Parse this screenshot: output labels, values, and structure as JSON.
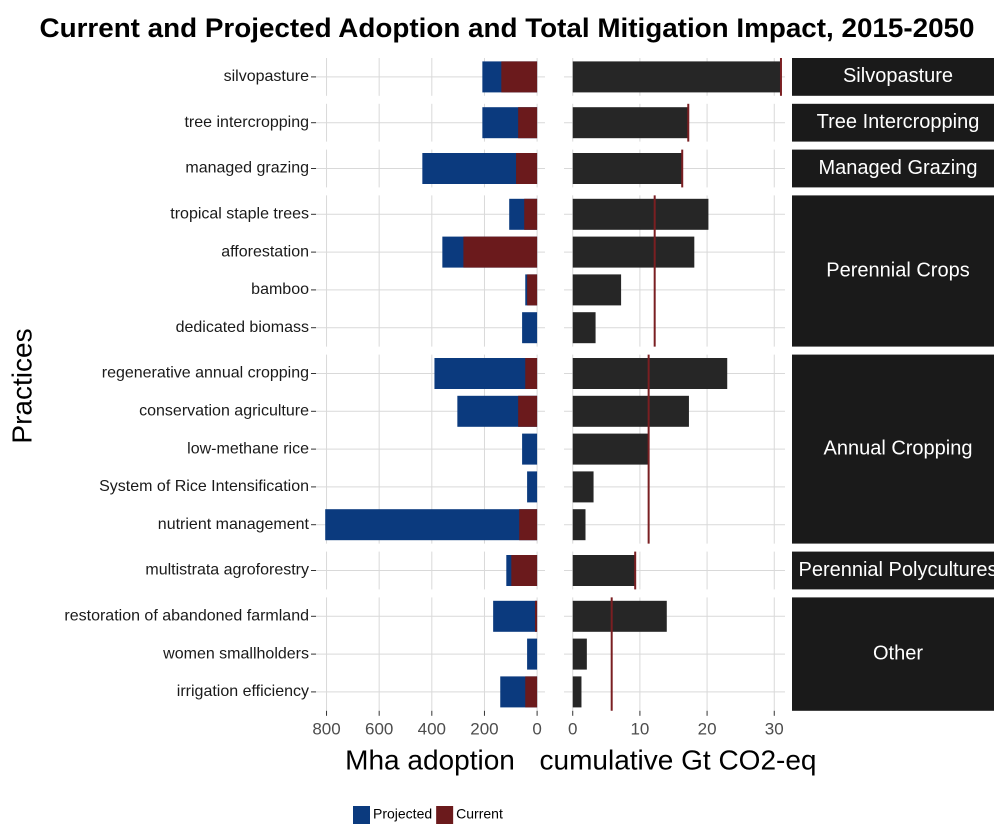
{
  "chart_data": {
    "type": "bar",
    "title": "Current and Projected Adoption and Total Mitigation Impact, 2015-2050",
    "ylabel": "Practices",
    "adoption": {
      "xlabel": "Mha adoption",
      "xlim": [
        840,
        -30
      ],
      "xticks": [
        800,
        600,
        400,
        200,
        0
      ],
      "series": [
        {
          "name": "Projected",
          "color": "#0b3a7e"
        },
        {
          "name": "Current",
          "color": "#6b1a1c"
        }
      ]
    },
    "impact": {
      "xlabel": "cumulative Gt CO2-eq",
      "xlim": [
        -1.3,
        31.6
      ],
      "xticks": [
        0,
        10,
        20,
        30
      ],
      "color": "#262626",
      "line_color": "#7a1f22"
    },
    "grid": true,
    "legend": "bottom",
    "groups": [
      {
        "label": "Silvopasture",
        "impact_mean": 31.0,
        "categories": [
          "silvopasture"
        ],
        "projected": [
          208
        ],
        "current": [
          136
        ],
        "impact": [
          31.0
        ]
      },
      {
        "label": "Tree Intercropping",
        "impact_mean": 17.2,
        "categories": [
          "tree intercropping"
        ],
        "projected": [
          208
        ],
        "current": [
          72
        ],
        "impact": [
          17.2
        ]
      },
      {
        "label": "Managed Grazing",
        "impact_mean": 16.3,
        "categories": [
          "managed grazing"
        ],
        "projected": [
          436
        ],
        "current": [
          80
        ],
        "impact": [
          16.3
        ]
      },
      {
        "label": "Perennial Crops",
        "impact_mean": 12.2,
        "categories": [
          "tropical staple trees",
          "afforestation",
          "bamboo",
          "dedicated biomass"
        ],
        "projected": [
          106,
          360,
          45,
          57
        ],
        "current": [
          49,
          280,
          38,
          0
        ],
        "impact": [
          20.2,
          18.1,
          7.2,
          3.4
        ]
      },
      {
        "label": "Annual Cropping",
        "impact_mean": 11.3,
        "categories": [
          "regenerative annual cropping",
          "conservation agriculture",
          "low-methane rice",
          "System of Rice Intensification",
          "nutrient management"
        ],
        "projected": [
          390,
          303,
          57,
          38,
          805
        ],
        "current": [
          45,
          72,
          0,
          0,
          68
        ],
        "impact": [
          23.0,
          17.3,
          11.3,
          3.1,
          1.9
        ]
      },
      {
        "label": "Perennial Polycultures",
        "impact_mean": 9.3,
        "categories": [
          "multistrata agroforestry"
        ],
        "projected": [
          117
        ],
        "current": [
          98
        ],
        "impact": [
          9.3
        ]
      },
      {
        "label": "Other",
        "impact_mean": 5.8,
        "categories": [
          "restoration of abandoned farmland",
          "women smallholders",
          "irrigation efficiency"
        ],
        "projected": [
          167,
          38,
          140
        ],
        "current": [
          8,
          0,
          45
        ],
        "impact": [
          14.0,
          2.1,
          1.3
        ]
      }
    ]
  }
}
